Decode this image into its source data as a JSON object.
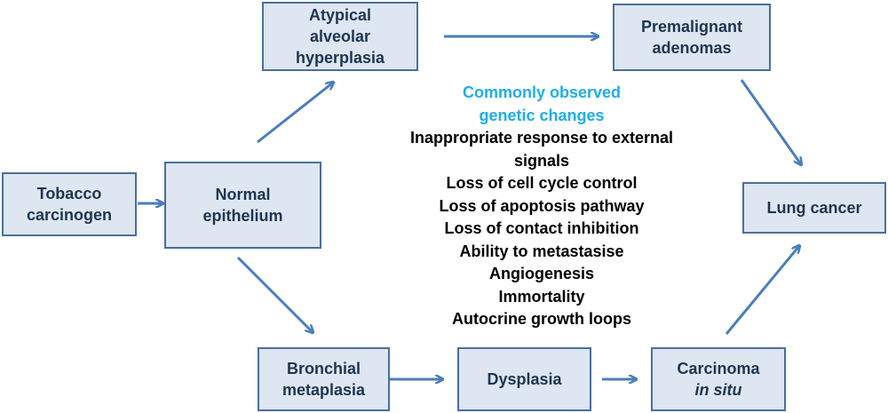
{
  "nodes": {
    "tobacco": {
      "line1": "Tobacco",
      "line2": "carcinogen"
    },
    "normal": {
      "line1": "Normal",
      "line2": "epithelium"
    },
    "aah": {
      "line1": "Atypical",
      "line2": "alveolar",
      "line3": "hyperplasia"
    },
    "premalignant": {
      "line1": "Premalignant",
      "line2": "adenomas"
    },
    "lung": {
      "line1": "Lung cancer"
    },
    "bronchial": {
      "line1": "Bronchial",
      "line2": "metaplasia"
    },
    "dysplasia": {
      "line1": "Dysplasia"
    },
    "cis": {
      "line1": "Carcinoma",
      "line2": "in situ"
    }
  },
  "genetic_changes": {
    "heading_line1": "Commonly observed",
    "heading_line2": "genetic changes",
    "items": [
      "Inappropriate response to external",
      "signals",
      "Loss of cell cycle control",
      "Loss of apoptosis pathway",
      "Loss of contact inhibition",
      "Ability to metastasise",
      "Angiogenesis",
      "Immortality",
      "Autocrine growth loops"
    ]
  },
  "colors": {
    "box_fill": "#dde6f1",
    "box_border": "#4b6f9c",
    "arrow": "#4a7ebb",
    "heading": "#1eaee8"
  }
}
